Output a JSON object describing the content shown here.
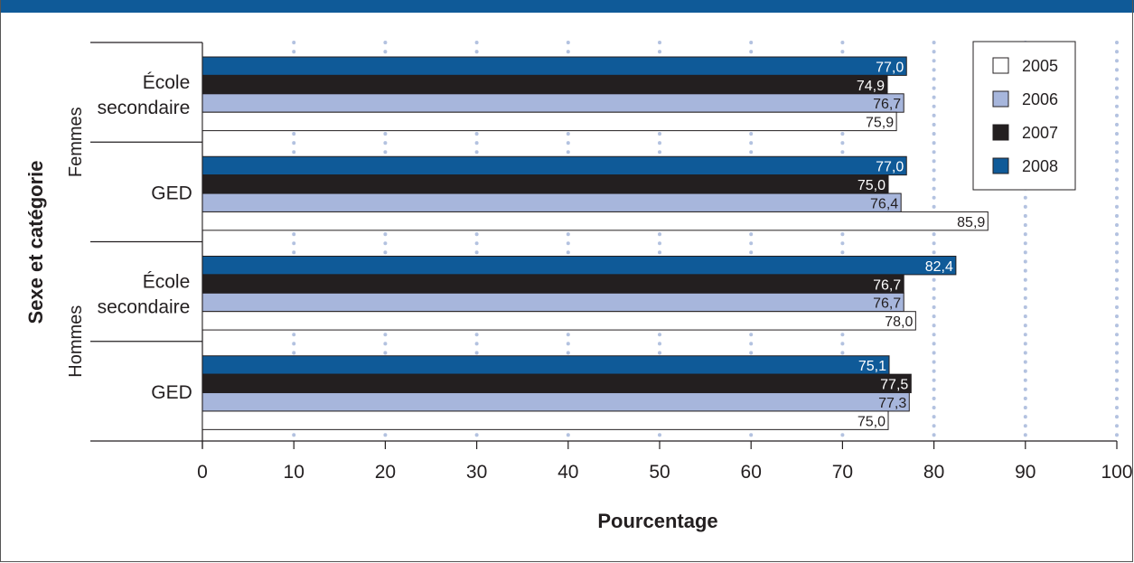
{
  "chart_data": {
    "type": "bar",
    "orientation": "horizontal",
    "groups": [
      {
        "sex": "Femmes",
        "category": "École secondaire"
      },
      {
        "sex": "Femmes",
        "category": "GED"
      },
      {
        "sex": "Hommes",
        "category": "École secondaire"
      },
      {
        "sex": "Hommes",
        "category": "GED"
      }
    ],
    "series": [
      {
        "name": "2008",
        "color": "#0f5a98",
        "values": [
          77.0,
          77.0,
          82.4,
          75.1
        ],
        "labels": [
          "77,0",
          "77,0",
          "82,4",
          "75,1"
        ]
      },
      {
        "name": "2007",
        "color": "#231f20",
        "values": [
          74.9,
          75.0,
          76.7,
          77.5
        ],
        "labels": [
          "74,9",
          "75,0",
          "76,7",
          "77,5"
        ]
      },
      {
        "name": "2006",
        "color": "#a7b6dc",
        "values": [
          76.7,
          76.4,
          76.7,
          77.3
        ],
        "labels": [
          "76,7",
          "76,4",
          "76,7",
          "77,3"
        ]
      },
      {
        "name": "2005",
        "color": "#ffffff",
        "values": [
          75.9,
          85.9,
          78.0,
          75.0
        ],
        "labels": [
          "75,9",
          "85,9",
          "78,0",
          "75,0"
        ]
      }
    ],
    "legend_order": [
      "2005",
      "2006",
      "2007",
      "2008"
    ],
    "legend_position": "top-right",
    "xlabel": "Pourcentage",
    "ylabel": "Sexe et catégorie",
    "xlim": [
      0,
      100
    ],
    "xticks": [
      0,
      10,
      20,
      30,
      40,
      50,
      60,
      70,
      80,
      90,
      100
    ],
    "grid": "dotted vertical",
    "colors": {
      "frame_strip": "#0f5a98",
      "grid": "#b3c2e0"
    }
  }
}
